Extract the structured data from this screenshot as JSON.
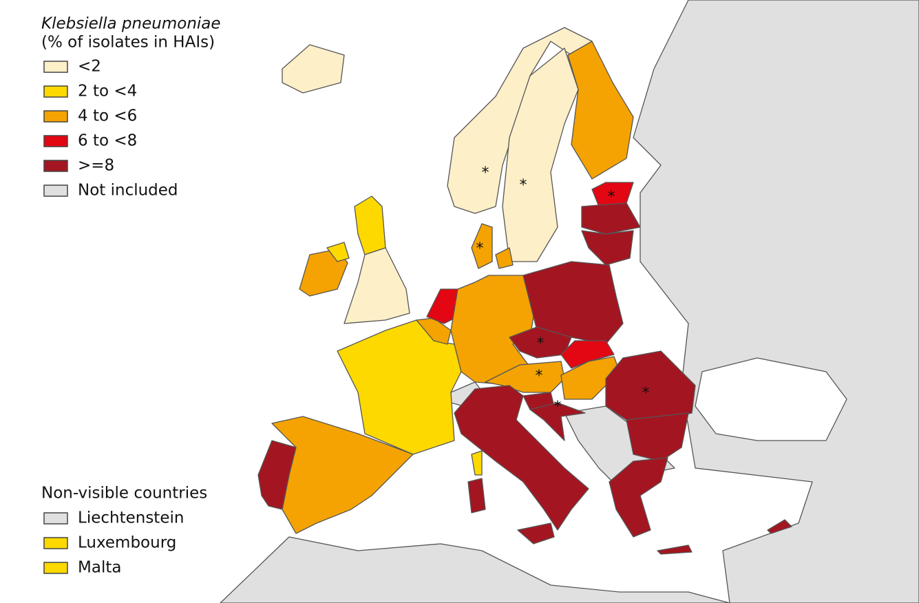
{
  "legend": {
    "title_italic": "Klebsiella pneumoniae",
    "title": "(% of isolates in HAIs)",
    "items": [
      {
        "label": "<2",
        "color": "#fdefc8"
      },
      {
        "label": "2 to <4",
        "color": "#fdd900"
      },
      {
        "label": "4 to <6",
        "color": "#f5a302"
      },
      {
        "label": "6 to <8",
        "color": "#e30613"
      },
      {
        "label": ">=8",
        "color": "#a31621"
      },
      {
        "label": "Not included",
        "color": "#e0e0e0"
      }
    ]
  },
  "non_visible": {
    "title": "Non-visible countries",
    "items": [
      {
        "label": "Liechtenstein",
        "color": "#e0e0e0"
      },
      {
        "label": "Luxembourg",
        "color": "#fdd900"
      },
      {
        "label": "Malta",
        "color": "#fdd900"
      }
    ]
  },
  "marker": "*"
}
